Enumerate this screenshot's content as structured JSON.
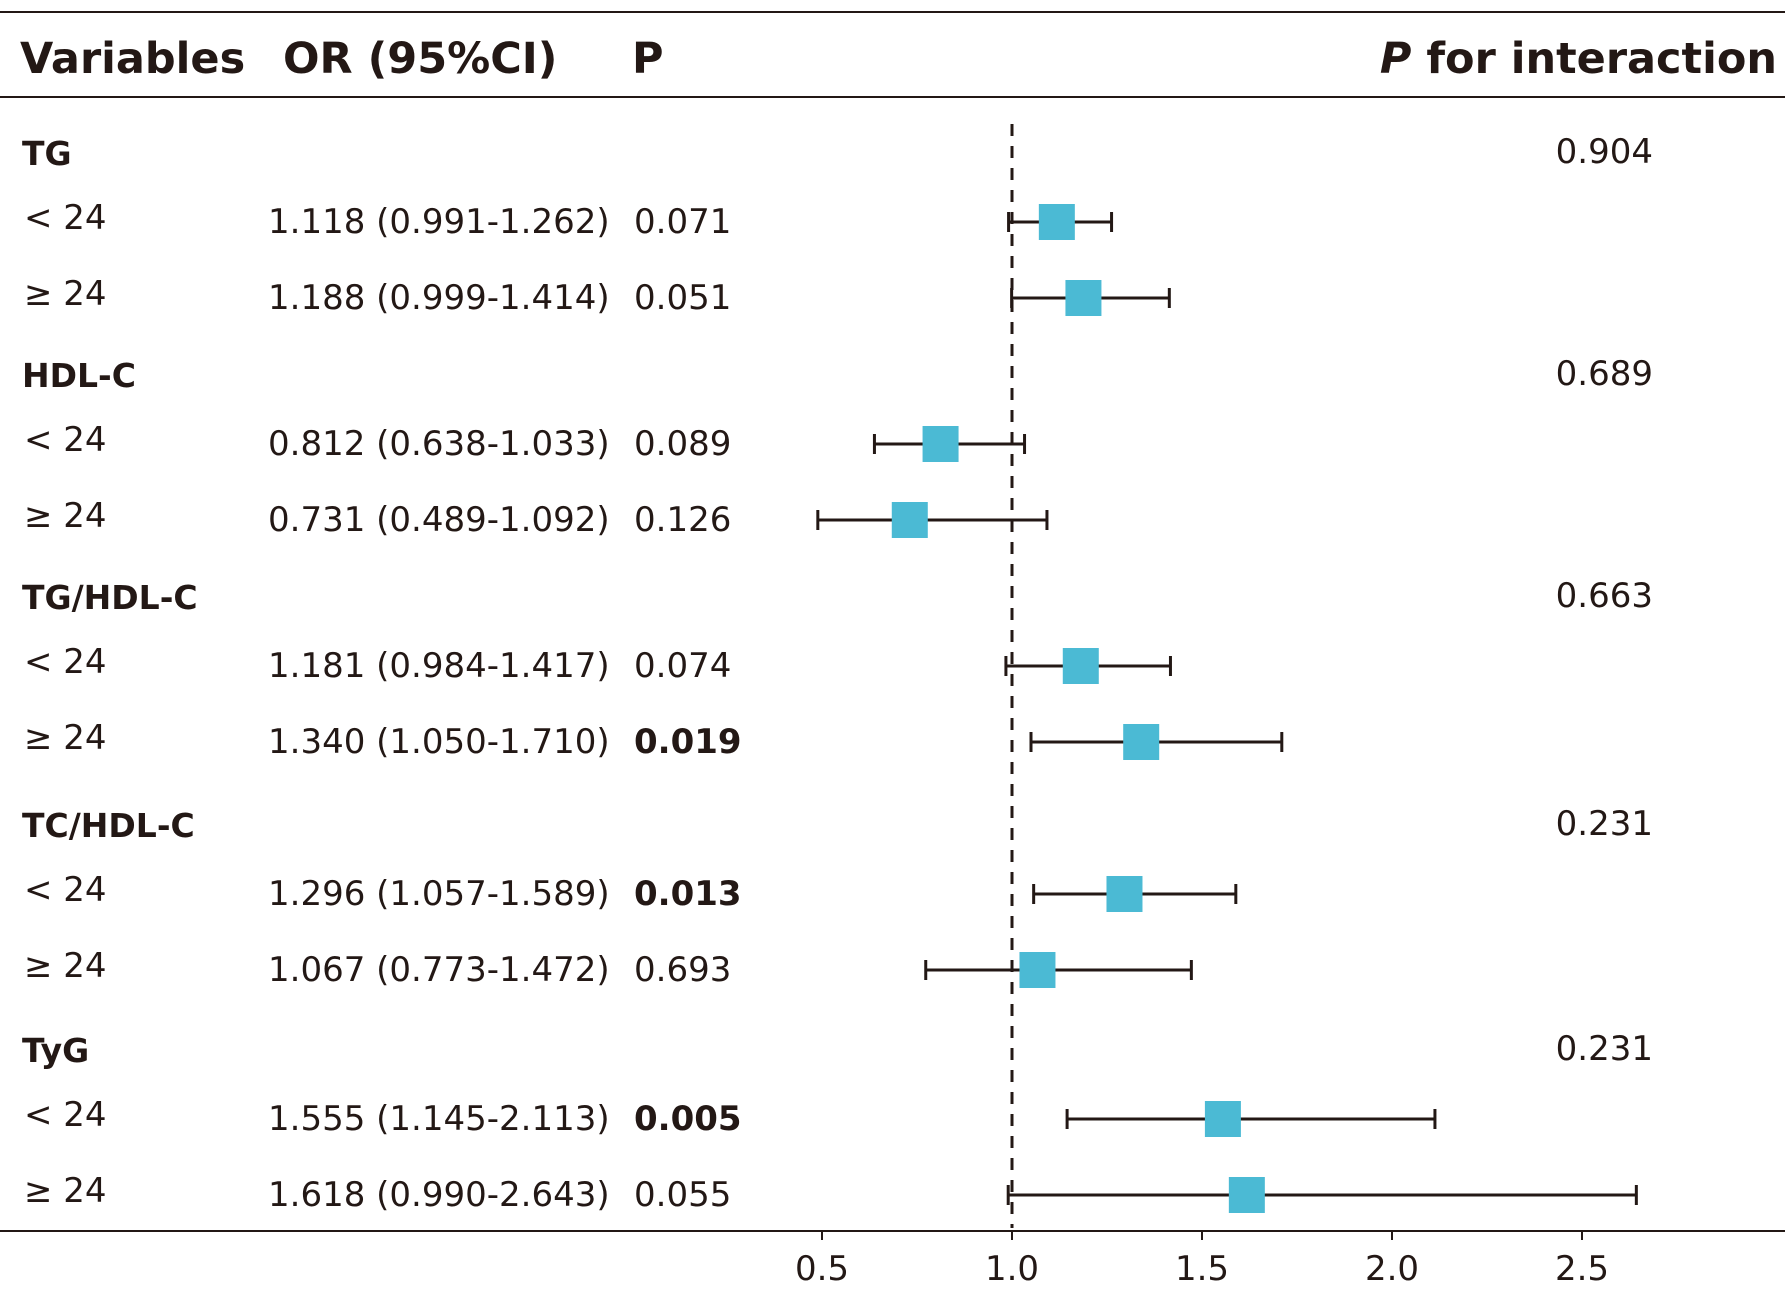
{
  "header": {
    "variables": "Variables",
    "or_ci": "OR (95%CI)",
    "p": "P",
    "p_interaction_italic": "P",
    "p_interaction_rest": " for interaction"
  },
  "chart_data": {
    "type": "forest",
    "reference_line": 1.0,
    "xlim": [
      0.0,
      2.9
    ],
    "xticks": [
      0.5,
      1.0,
      1.5,
      2.0,
      2.5
    ],
    "xtick_labels": [
      "0.5",
      "1.0",
      "1.5",
      "2.0",
      "2.5"
    ],
    "marker_color": "#4bbad4",
    "groups": [
      {
        "name": "TG",
        "p_interaction": "0.904",
        "rows": [
          {
            "label": "< 24",
            "or_ci": "1.118 (0.991-1.262)",
            "p": "0.071",
            "p_bold": false,
            "or": 1.118,
            "lo": 0.991,
            "hi": 1.262
          },
          {
            "label": "≥ 24",
            "or_ci": "1.188 (0.999-1.414)",
            "p": "0.051",
            "p_bold": false,
            "or": 1.188,
            "lo": 0.999,
            "hi": 1.414
          }
        ]
      },
      {
        "name": "HDL-C",
        "p_interaction": "0.689",
        "rows": [
          {
            "label": "< 24",
            "or_ci": "0.812 (0.638-1.033)",
            "p": "0.089",
            "p_bold": false,
            "or": 0.812,
            "lo": 0.638,
            "hi": 1.033
          },
          {
            "label": "≥ 24",
            "or_ci": "0.731 (0.489-1.092)",
            "p": "0.126",
            "p_bold": false,
            "or": 0.731,
            "lo": 0.489,
            "hi": 1.092
          }
        ]
      },
      {
        "name": "TG/HDL-C",
        "p_interaction": "0.663",
        "rows": [
          {
            "label": "< 24",
            "or_ci": "1.181 (0.984-1.417)",
            "p": "0.074",
            "p_bold": false,
            "or": 1.181,
            "lo": 0.984,
            "hi": 1.417
          },
          {
            "label": "≥ 24",
            "or_ci": "1.340 (1.050-1.710)",
            "p": "0.019",
            "p_bold": true,
            "or": 1.34,
            "lo": 1.05,
            "hi": 1.71
          }
        ]
      },
      {
        "name": "TC/HDL-C",
        "p_interaction": "0.231",
        "rows": [
          {
            "label": "< 24",
            "or_ci": "1.296 (1.057-1.589)",
            "p": "0.013",
            "p_bold": true,
            "or": 1.296,
            "lo": 1.057,
            "hi": 1.589
          },
          {
            "label": "≥ 24",
            "or_ci": "1.067 (0.773-1.472)",
            "p": "0.693",
            "p_bold": false,
            "or": 1.067,
            "lo": 0.773,
            "hi": 1.472
          }
        ]
      },
      {
        "name": "TyG",
        "p_interaction": "0.231",
        "rows": [
          {
            "label": "< 24",
            "or_ci": "1.555 (1.145-2.113)",
            "p": "0.005",
            "p_bold": true,
            "or": 1.555,
            "lo": 1.145,
            "hi": 2.113
          },
          {
            "label": "≥ 24",
            "or_ci": "1.618 (0.990-2.643)",
            "p": "0.055",
            "p_bold": false,
            "or": 1.618,
            "lo": 0.99,
            "hi": 2.643
          }
        ]
      }
    ]
  }
}
